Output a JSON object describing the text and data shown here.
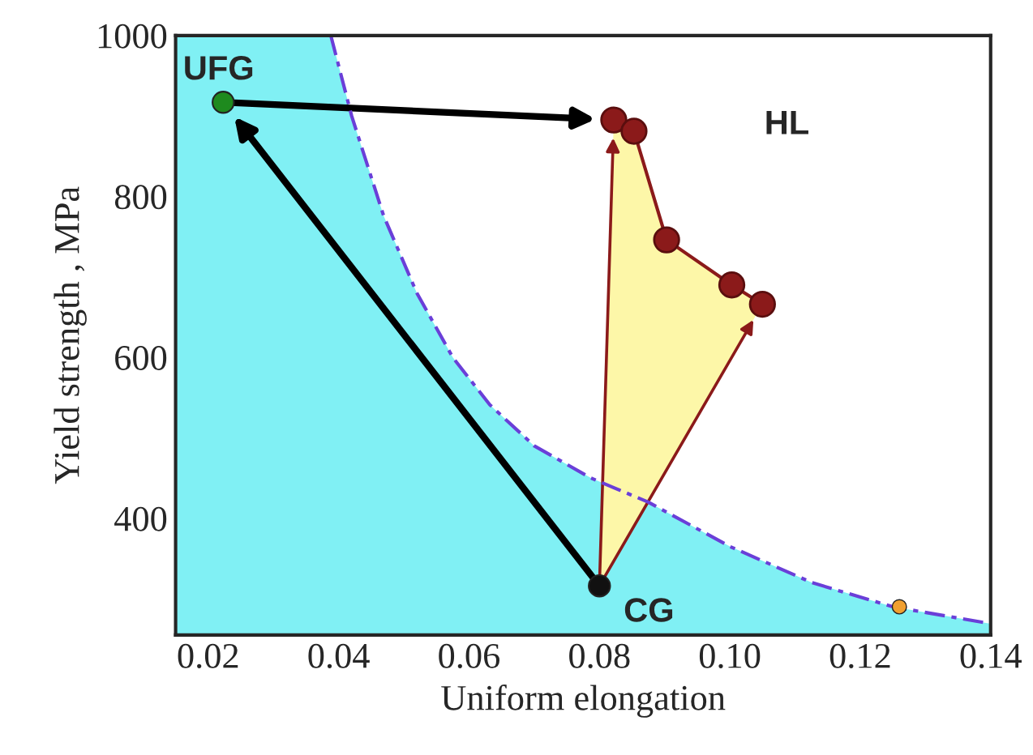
{
  "chart_data": {
    "type": "scatter",
    "xlabel": "Uniform elongation",
    "ylabel": "Yield strength , MPa",
    "xlim": [
      0.015,
      0.14
    ],
    "ylim": [
      255,
      1000
    ],
    "xticks": [
      {
        "value": 0.02,
        "label": "0.02"
      },
      {
        "value": 0.04,
        "label": "0.04"
      },
      {
        "value": 0.06,
        "label": "0.06"
      },
      {
        "value": 0.08,
        "label": "0.08"
      },
      {
        "value": 0.1,
        "label": "0.10"
      },
      {
        "value": 0.12,
        "label": "0.12"
      },
      {
        "value": 0.14,
        "label": "0.14"
      }
    ],
    "yticks": [
      400,
      600,
      800,
      1000
    ],
    "grid": false,
    "legend": false,
    "series": [
      {
        "type": "area",
        "color": "#80f0f4",
        "x": [
          0.015,
          0.0388,
          0.042,
          0.0469,
          0.052,
          0.0575,
          0.0632,
          0.07,
          0.0787,
          0.0875,
          0.1,
          0.1126,
          0.125,
          0.14
        ],
        "values": [
          1000,
          1000,
          900,
          776,
          680,
          600,
          541,
          490,
          450,
          420,
          365,
          320,
          290,
          269
        ]
      },
      {
        "type": "line",
        "color": "#6a3fd8",
        "line_style": "dashed",
        "x": [
          0.0388,
          0.042,
          0.0469,
          0.052,
          0.0575,
          0.0632,
          0.07,
          0.0787,
          0.0875,
          0.1,
          0.1126,
          0.125,
          0.14
        ],
        "values": [
          1000,
          900,
          776,
          680,
          600,
          541,
          490,
          450,
          420,
          365,
          320,
          290,
          269
        ]
      },
      {
        "type": "line",
        "color": "#8b1a1a",
        "line_style": "solid",
        "marker": "circle",
        "x": [
          0.0822,
          0.0853,
          0.0903,
          0.1003,
          0.105
        ],
        "values": [
          895,
          881,
          746,
          690,
          666
        ]
      },
      {
        "color": "#1e8a1e",
        "marker": "circle",
        "x": [
          0.0223
        ],
        "values": [
          917
        ]
      },
      {
        "color": "#111111",
        "marker": "circle",
        "x": [
          0.08
        ],
        "values": [
          316
        ]
      },
      {
        "color": "#f0a030",
        "marker": "circle",
        "x": [
          0.126
        ],
        "values": [
          290
        ]
      }
    ],
    "annotations": [
      {
        "text": "UFG",
        "x": 0.0223,
        "y": 917
      },
      "HL",
      {
        "text": "CG",
        "x": 0.08,
        "y": 316
      }
    ]
  }
}
